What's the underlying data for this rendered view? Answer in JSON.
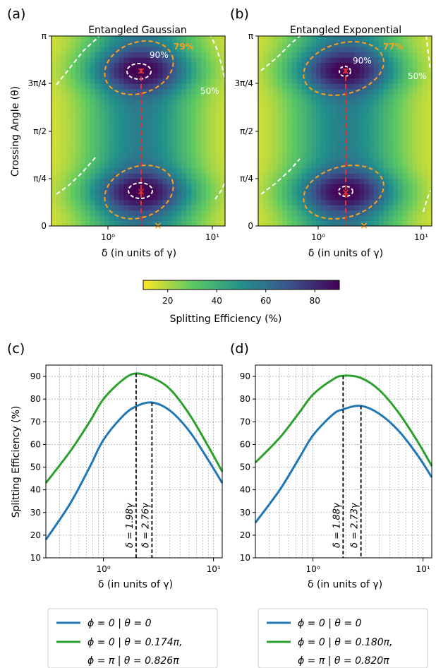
{
  "panel_labels": [
    "(a)",
    "(b)",
    "(c)",
    "(d)"
  ],
  "colorbar": {
    "label": "Splitting Efficiency (%)",
    "ticks": [
      "20",
      "40",
      "60",
      "80"
    ],
    "tick_values": [
      20,
      40,
      60,
      80
    ],
    "range": [
      10,
      90
    ]
  },
  "heatmap_axes": {
    "ylabel": "Crossing Angle (θ)",
    "xlabel": "δ (in units of γ)",
    "yticks": [
      "0",
      "π/4",
      "π/2",
      "3π/4",
      "π"
    ],
    "xticks": [
      "10⁰",
      "10¹"
    ],
    "xlim": [
      0.3,
      12
    ]
  },
  "line_axes": {
    "ylabel": "Splitting Efficiency (%)",
    "xlabel": "δ (in units of γ)",
    "yticks": [
      "10",
      "20",
      "30",
      "40",
      "50",
      "60",
      "70",
      "80",
      "90"
    ],
    "ylim": [
      10,
      95
    ],
    "xticks": [
      "10⁰",
      "10¹"
    ],
    "xlim": [
      0.3,
      12
    ]
  },
  "colors": {
    "blue": "#1f77b4",
    "green": "#2ca02c",
    "orange": "#ff9f1a",
    "red": "#e8312f"
  },
  "chart_data": [
    {
      "type": "heatmap",
      "title": "Entangled Gaussian",
      "x_scale": "log",
      "contours": [
        {
          "label": "90%",
          "color": "white"
        },
        {
          "label": "79%",
          "color": "orange"
        },
        {
          "label": "50%",
          "color": "white"
        }
      ],
      "max_efficiency_percent": 79,
      "optimal_points": [
        {
          "delta": 1.98,
          "theta": "0.174π"
        },
        {
          "delta": 1.98,
          "theta": "0.826π"
        },
        {
          "delta": 2.76,
          "theta": "0"
        }
      ]
    },
    {
      "type": "heatmap",
      "title": "Entangled Exponential",
      "x_scale": "log",
      "contours": [
        {
          "label": "90%",
          "color": "white"
        },
        {
          "label": "77%",
          "color": "orange"
        },
        {
          "label": "50%",
          "color": "white"
        }
      ],
      "max_efficiency_percent": 77,
      "optimal_points": [
        {
          "delta": 1.88,
          "theta": "0.180π"
        },
        {
          "delta": 1.88,
          "theta": "0.820π"
        },
        {
          "delta": 2.73,
          "theta": "0"
        }
      ]
    },
    {
      "type": "line",
      "x_scale": "log",
      "xlabel": "δ (in units of γ)",
      "ylabel": "Splitting Efficiency (%)",
      "ylim": [
        10,
        95
      ],
      "x": [
        0.3,
        0.5,
        0.75,
        1.0,
        1.5,
        1.98,
        2.76,
        4.0,
        6.0,
        9.0,
        12.0
      ],
      "series": [
        {
          "name": "ϕ = 0 | θ = 0",
          "color": "#1f77b4",
          "values": [
            18,
            34,
            50,
            62,
            72.5,
            76.8,
            78.5,
            75,
            66,
            53,
            43
          ]
        },
        {
          "name": "ϕ = 0 | θ = 0.174π,",
          "name2": "ϕ = π | θ = 0.826π",
          "color": "#2ca02c",
          "values": [
            43,
            57,
            70,
            80,
            88.5,
            91.3,
            89.5,
            84.5,
            73.5,
            59,
            48
          ]
        }
      ],
      "vlines": [
        {
          "x": 1.98,
          "label": "δ = 1.98γ",
          "y_top": 91.3
        },
        {
          "x": 2.76,
          "label": "δ = 2.76γ",
          "y_top": 78.5
        }
      ]
    },
    {
      "type": "line",
      "x_scale": "log",
      "xlabel": "δ (in units of γ)",
      "ylabel": "",
      "ylim": [
        10,
        95
      ],
      "x": [
        0.3,
        0.5,
        0.75,
        1.0,
        1.5,
        1.88,
        2.73,
        4.0,
        6.0,
        9.0,
        12.0
      ],
      "series": [
        {
          "name": "ϕ = 0 | θ = 0",
          "color": "#1f77b4",
          "values": [
            25.5,
            40,
            54,
            64,
            73,
            75.5,
            77,
            73.5,
            66,
            55,
            45.5
          ]
        },
        {
          "name": "ϕ = 0 | θ = 0.180π,",
          "name2": "ϕ = π | θ = 0.820π",
          "color": "#2ca02c",
          "values": [
            52,
            63,
            74,
            82,
            88.5,
            90.3,
            89.3,
            84,
            74,
            61,
            50.5
          ]
        }
      ],
      "vlines": [
        {
          "x": 1.88,
          "label": "δ = 1.88γ",
          "y_top": 90.3
        },
        {
          "x": 2.73,
          "label": "δ = 2.73γ",
          "y_top": 77
        }
      ]
    }
  ]
}
